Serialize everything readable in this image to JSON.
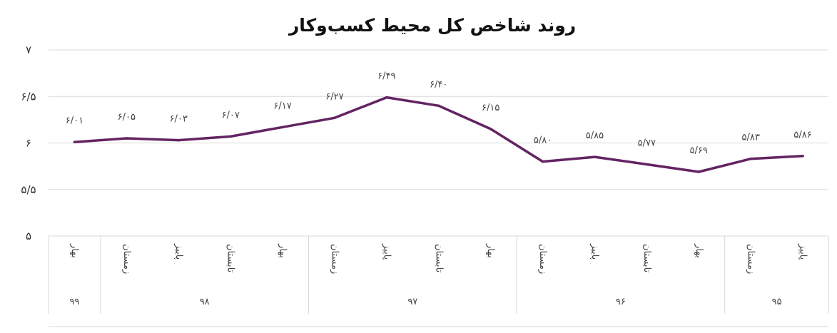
{
  "chart_data": {
    "type": "line",
    "title": "روند شاخص کل محیط کسب‌وکار",
    "ylim": [
      5,
      7
    ],
    "y_ticks": [
      5,
      5.5,
      6,
      6.5,
      7
    ],
    "y_tick_labels": [
      "۵",
      "۵/۵",
      "۶",
      "۶/۵",
      "۷"
    ],
    "grid": true,
    "x_direction": "right-to-left",
    "categories": [
      "پاییز",
      "زمستان",
      "بهار",
      "تابستان",
      "پاییز",
      "زمستان",
      "بهار",
      "تابستان",
      "پاییز",
      "زمستان",
      "بهار",
      "تابستان",
      "پاییز",
      "زمستان",
      "بهار"
    ],
    "values": [
      5.86,
      5.83,
      5.69,
      5.77,
      5.85,
      5.8,
      6.15,
      6.4,
      6.49,
      6.27,
      6.17,
      6.07,
      6.03,
      6.05,
      6.01
    ],
    "data_labels": [
      "۵/۸۶",
      "۵/۸۳",
      "۵/۶۹",
      "۵/۷۷",
      "۵/۸۵",
      "۵/۸۰",
      "۶/۱۵",
      "۶/۴۰",
      "۶/۴۹",
      "۶/۲۷",
      "۶/۱۷",
      "۶/۰۷",
      "۶/۰۳",
      "۶/۰۵",
      "۶/۰۱"
    ],
    "year_groups": [
      {
        "label": "۹۵",
        "count": 2
      },
      {
        "label": "۹۶",
        "count": 4
      },
      {
        "label": "۹۷",
        "count": 4
      },
      {
        "label": "۹۸",
        "count": 4
      },
      {
        "label": "۹۹",
        "count": 1
      }
    ],
    "line_color": "#632463",
    "grid_color": "#d9d9d9"
  }
}
